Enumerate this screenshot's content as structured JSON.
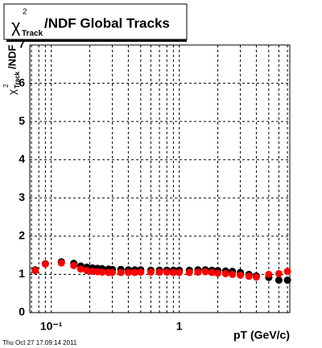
{
  "chart_data": {
    "type": "scatter",
    "title": {
      "symbol": "χ",
      "superscript": "2",
      "subscript": "Track",
      "text": "/NDF  Global Tracks"
    },
    "ylabel": {
      "symbol": "χ",
      "superscript": "2",
      "subscript": "Track",
      "text": "/NDF"
    },
    "xlabel": "pT (GeV/c)",
    "footer": "Thu Oct 27 17:09:14 2011",
    "xlog": true,
    "grid": true,
    "xlim": [
      0.068,
      7.3
    ],
    "ylim": [
      0,
      7
    ],
    "xticks": [
      {
        "value": 0.1,
        "label": "10⁻¹"
      },
      1
    ],
    "xminor_ticks": [
      0.07,
      0.08,
      0.09,
      0.2,
      0.3,
      0.4,
      0.5,
      0.6,
      0.7,
      0.8,
      0.9,
      2,
      3,
      4,
      5,
      6,
      7
    ],
    "yticks": [
      0,
      1,
      2,
      3,
      4,
      5,
      6,
      7
    ],
    "series": [
      {
        "name": "black",
        "color": "#000000",
        "x": [
          0.075,
          0.09,
          0.12,
          0.15,
          0.17,
          0.19,
          0.21,
          0.23,
          0.25,
          0.28,
          0.3,
          0.35,
          0.4,
          0.45,
          0.5,
          0.6,
          0.7,
          0.8,
          0.9,
          1.0,
          1.2,
          1.4,
          1.6,
          1.8,
          2.0,
          2.3,
          2.6,
          3.0,
          3.5,
          4.0,
          5.0,
          6.0,
          7.0
        ],
        "values": [
          1.12,
          1.28,
          1.33,
          1.29,
          1.22,
          1.19,
          1.17,
          1.16,
          1.15,
          1.14,
          1.13,
          1.13,
          1.12,
          1.12,
          1.12,
          1.11,
          1.11,
          1.11,
          1.11,
          1.11,
          1.11,
          1.12,
          1.12,
          1.11,
          1.1,
          1.09,
          1.08,
          1.05,
          1.0,
          0.96,
          0.92,
          0.85,
          0.85
        ]
      },
      {
        "name": "red",
        "color": "#ff0000",
        "x": [
          0.075,
          0.09,
          0.12,
          0.15,
          0.17,
          0.19,
          0.21,
          0.23,
          0.25,
          0.28,
          0.3,
          0.35,
          0.4,
          0.45,
          0.5,
          0.6,
          0.7,
          0.8,
          0.9,
          1.0,
          1.2,
          1.4,
          1.6,
          1.8,
          2.0,
          2.3,
          2.6,
          3.0,
          3.5,
          4.0,
          5.0,
          6.0,
          7.0
        ],
        "values": [
          1.1,
          1.27,
          1.3,
          1.23,
          1.14,
          1.1,
          1.08,
          1.07,
          1.06,
          1.05,
          1.05,
          1.05,
          1.05,
          1.05,
          1.06,
          1.06,
          1.06,
          1.06,
          1.05,
          1.05,
          1.05,
          1.06,
          1.07,
          1.05,
          1.03,
          1.02,
          1.0,
          0.98,
          0.95,
          0.93,
          1.0,
          1.02,
          1.08
        ]
      }
    ]
  }
}
